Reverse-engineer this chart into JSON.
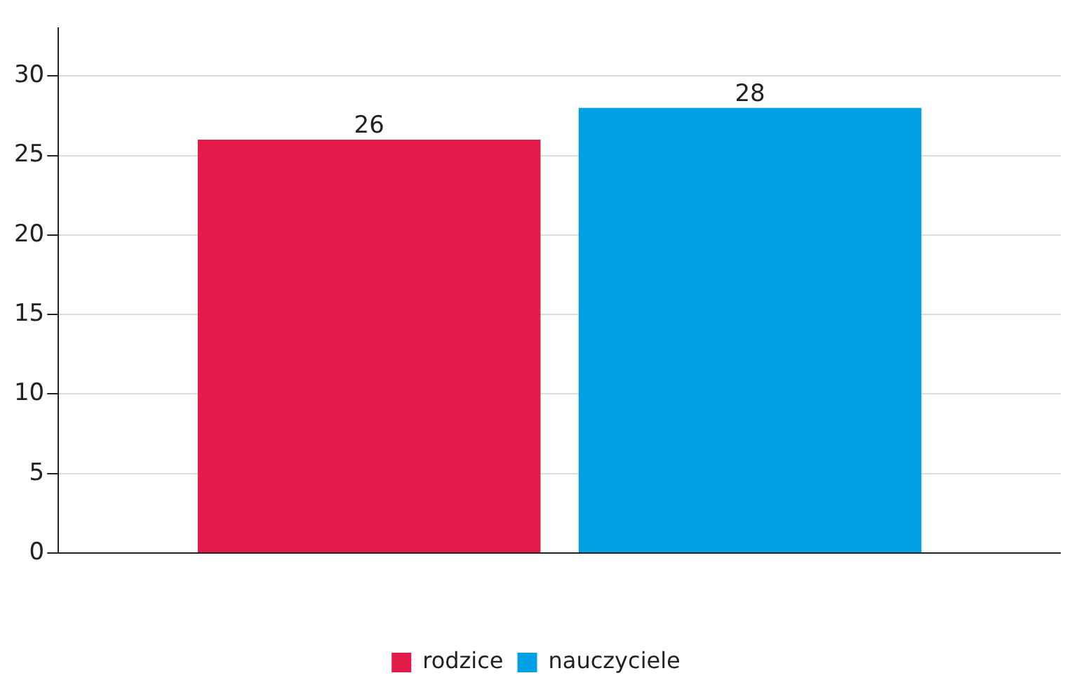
{
  "chart_data": {
    "type": "bar",
    "categories": [
      null
    ],
    "series": [
      {
        "name": "rodzice",
        "color": "#e31b4a",
        "values": [
          26
        ]
      },
      {
        "name": "nauczyciele",
        "color": "#00a0e2",
        "values": [
          28
        ]
      }
    ],
    "ylim": [
      0,
      33
    ],
    "yticks": [
      0,
      5,
      10,
      15,
      20,
      25,
      30
    ],
    "grid": "y",
    "legend": "bottom",
    "data_labels": true
  }
}
